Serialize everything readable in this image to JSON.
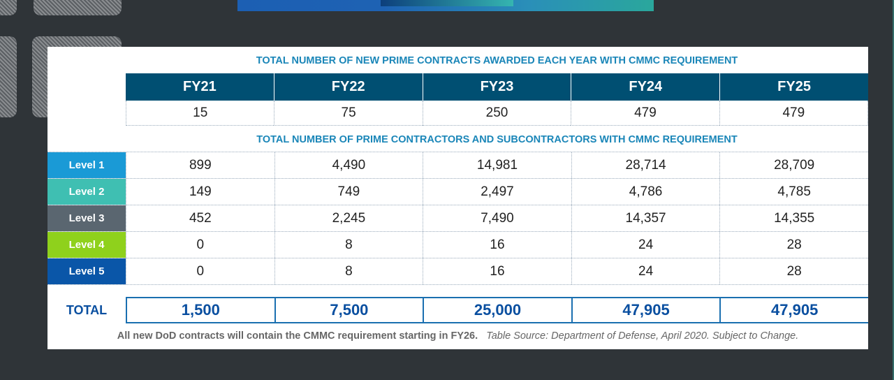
{
  "awards_caption": "TOTAL NUMBER OF NEW PRIME CONTRACTS AWARDED EACH YEAR WITH CMMC REQUIREMENT",
  "contractors_caption": "TOTAL NUMBER OF PRIME CONTRACTORS AND SUBCONTRACTORS WITH CMMC REQUIREMENT",
  "fiscal_years": [
    "FY21",
    "FY22",
    "FY23",
    "FY24",
    "FY25"
  ],
  "new_prime_contracts": [
    "15",
    "75",
    "250",
    "479",
    "479"
  ],
  "levels": [
    {
      "label": "Level 1",
      "color": "#1a9ad6",
      "values": [
        "899",
        "4,490",
        "14,981",
        "28,714",
        "28,709"
      ]
    },
    {
      "label": "Level 2",
      "color": "#3fbfb2",
      "values": [
        "149",
        "749",
        "2,497",
        "4,786",
        "4,785"
      ]
    },
    {
      "label": "Level 3",
      "color": "#5a6670",
      "values": [
        "452",
        "2,245",
        "7,490",
        "14,357",
        "14,355"
      ]
    },
    {
      "label": "Level 4",
      "color": "#8fd11c",
      "values": [
        "0",
        "8",
        "16",
        "24",
        "28"
      ]
    },
    {
      "label": "Level 5",
      "color": "#0a56a8",
      "values": [
        "0",
        "8",
        "16",
        "24",
        "28"
      ]
    }
  ],
  "total": {
    "label": "TOTAL",
    "values": [
      "1,500",
      "7,500",
      "25,000",
      "47,905",
      "47,905"
    ]
  },
  "footnote": {
    "statement": "All new DoD contracts will contain the CMMC requirement starting in FY26.",
    "source": "Table Source: Department of Defense, April 2020. Subject to Change."
  }
}
